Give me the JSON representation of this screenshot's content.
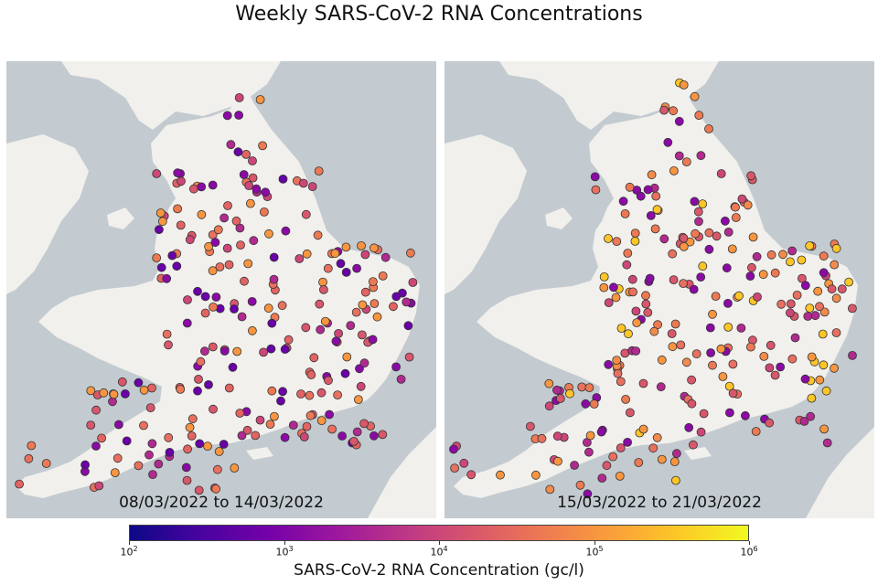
{
  "title": "Weekly SARS-CoV-2 RNA Concentrations",
  "panels": [
    {
      "date_range": "08/03/2022 to 14/03/2022"
    },
    {
      "date_range": "15/03/2022 to 21/03/2022"
    }
  ],
  "colorbar": {
    "label": "SARS-CoV-2 RNA Concentration (gc/l)",
    "scale": "log",
    "colormap": "plasma",
    "ticks": [
      {
        "base": "10",
        "exp": "2"
      },
      {
        "base": "10",
        "exp": "3"
      },
      {
        "base": "10",
        "exp": "4"
      },
      {
        "base": "10",
        "exp": "5"
      },
      {
        "base": "10",
        "exp": "6"
      }
    ]
  },
  "colors": {
    "sea": "#c3cbd0",
    "land": "#f1f0ec",
    "marker_edge": "#333333"
  }
}
